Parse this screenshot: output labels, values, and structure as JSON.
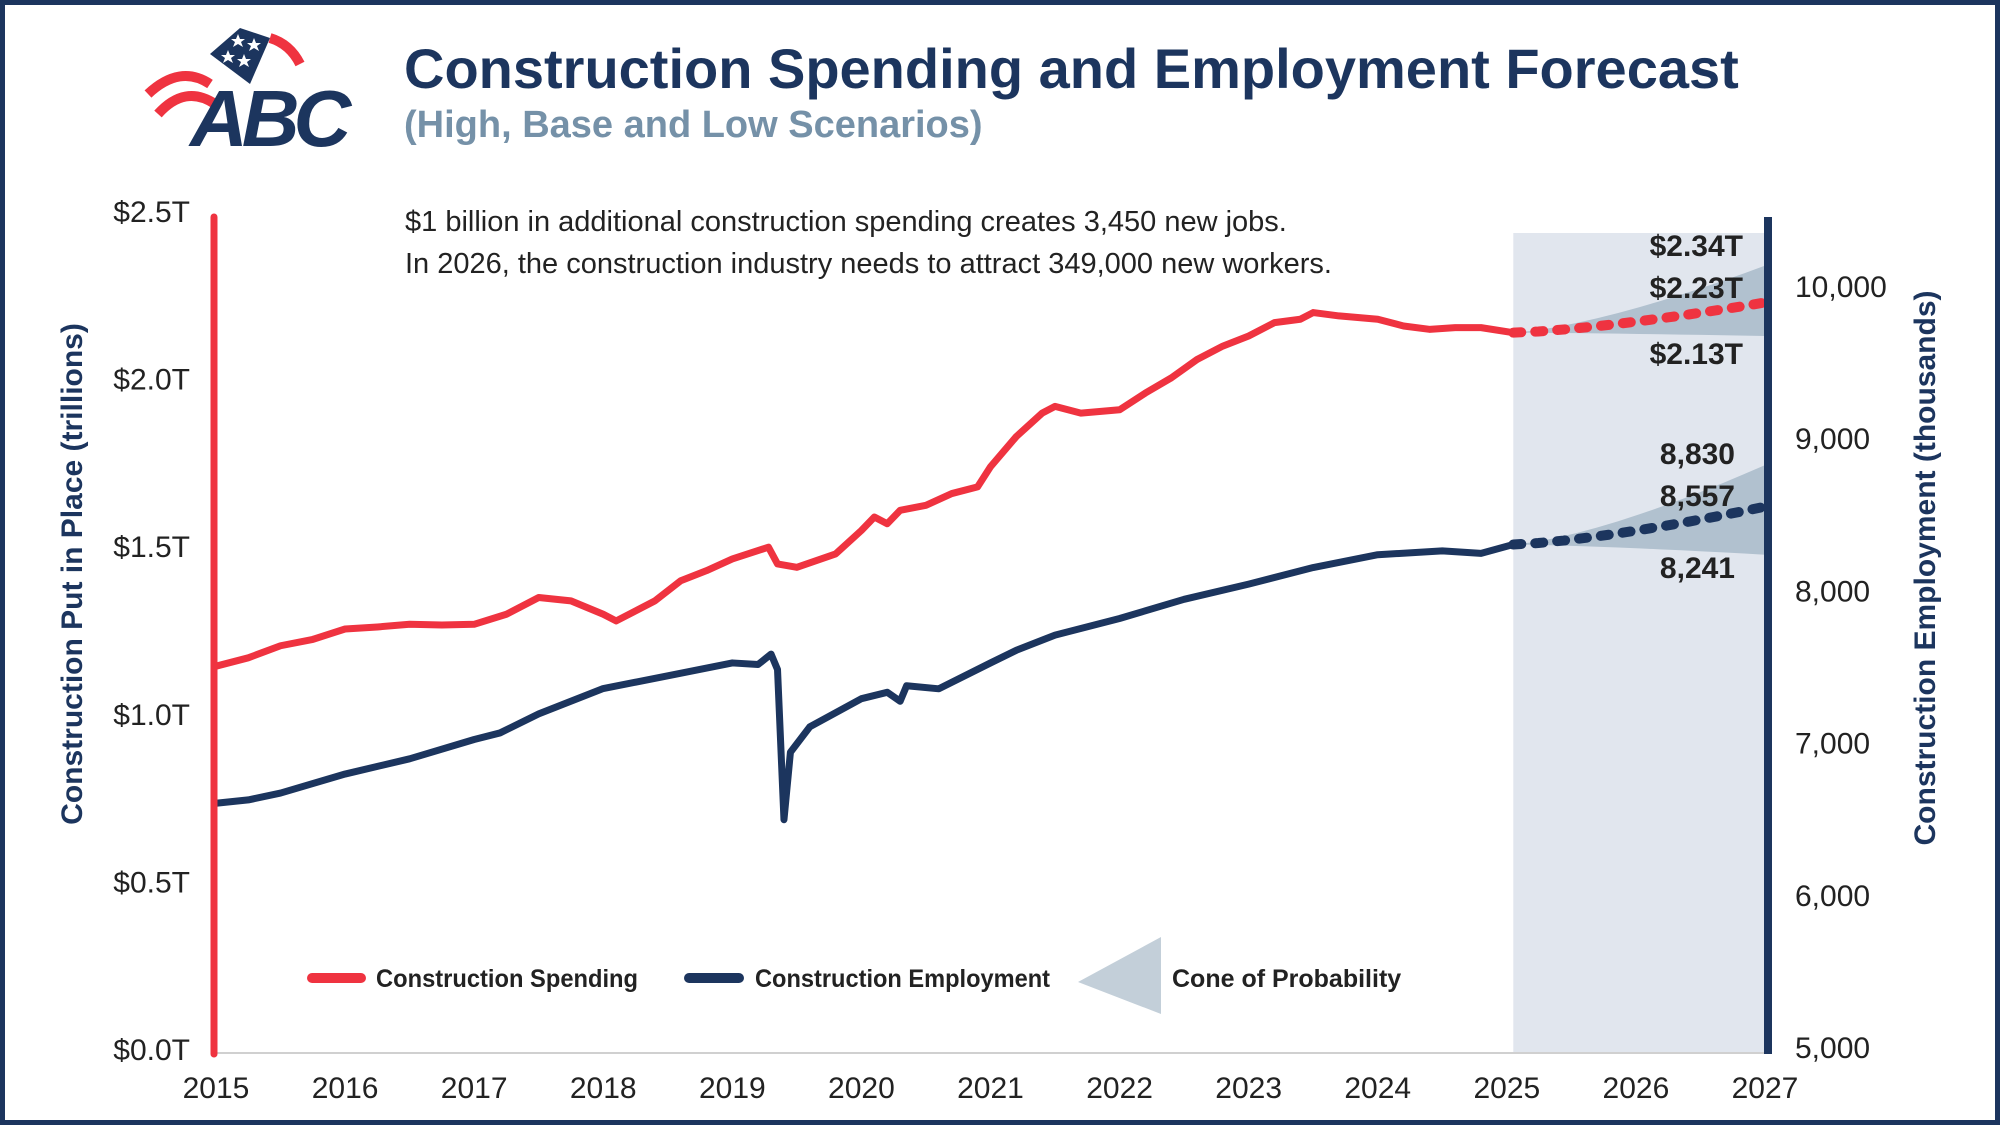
{
  "logo": {
    "text": "ABC"
  },
  "header": {
    "title": "Construction Spending and Employment Forecast",
    "subtitle": "(High, Base and Low Scenarios)"
  },
  "notes": [
    "$1 billion in additional construction spending creates 3,450 new jobs.",
    "In 2026, the construction industry needs to attract 349,000 new workers."
  ],
  "colors": {
    "spending": "#ef3340",
    "employment": "#1c355e",
    "cone": "#b1c1cf",
    "forecast_bg": "#e1e6ee",
    "subtitle": "#7591a8"
  },
  "chart_data": {
    "type": "line",
    "title": "Construction Spending and Employment Forecast",
    "subtitle": "(High, Base and Low Scenarios)",
    "x_ticks": [
      "2015",
      "2016",
      "2017",
      "2018",
      "2019",
      "2020",
      "2021",
      "2022",
      "2023",
      "2024",
      "2025",
      "2026",
      "2027"
    ],
    "xlim": [
      2015,
      2027
    ],
    "left_axis": {
      "label": "Construction Put in Place (trillions)",
      "ylim": [
        0,
        2.5
      ],
      "ticks": [
        "$0.0T",
        "$0.5T",
        "$1.0T",
        "$1.5T",
        "$2.0T",
        "$2.5T"
      ],
      "tick_values": [
        0,
        0.5,
        1,
        1.5,
        2,
        2.5
      ]
    },
    "right_axis": {
      "label": "Construction Employment (thousands)",
      "ylim": [
        5000,
        10000
      ],
      "ticks": [
        "5,000",
        "6,000",
        "7,000",
        "8,000",
        "9,000",
        "10,000"
      ],
      "tick_values": [
        5000,
        6000,
        7000,
        8000,
        9000,
        10000
      ]
    },
    "grid": false,
    "legend_position": "bottom",
    "legend": [
      "Construction Spending",
      "Construction Employment",
      "Cone of Probability"
    ],
    "forecast_start": 2025.05,
    "series": [
      {
        "name": "Construction Spending",
        "axis": "left",
        "x": [
          2015.0,
          2015.25,
          2015.5,
          2015.75,
          2016.0,
          2016.25,
          2016.5,
          2016.75,
          2017.0,
          2017.25,
          2017.5,
          2017.75,
          2018.0,
          2018.1,
          2018.4,
          2018.6,
          2018.8,
          2019.0,
          2019.28,
          2019.35,
          2019.5,
          2019.8,
          2020.0,
          2020.1,
          2020.2,
          2020.3,
          2020.5,
          2020.7,
          2020.9,
          2021.0,
          2021.2,
          2021.4,
          2021.5,
          2021.7,
          2022.0,
          2022.2,
          2022.4,
          2022.6,
          2022.8,
          2023.0,
          2023.2,
          2023.4,
          2023.5,
          2023.7,
          2024.0,
          2024.2,
          2024.4,
          2024.6,
          2024.8,
          2025.05
        ],
        "y": [
          1.145,
          1.17,
          1.206,
          1.225,
          1.256,
          1.262,
          1.27,
          1.268,
          1.27,
          1.3,
          1.35,
          1.34,
          1.3,
          1.28,
          1.34,
          1.4,
          1.43,
          1.465,
          1.5,
          1.45,
          1.44,
          1.48,
          1.55,
          1.59,
          1.57,
          1.61,
          1.625,
          1.66,
          1.68,
          1.74,
          1.83,
          1.9,
          1.92,
          1.9,
          1.91,
          1.96,
          2.005,
          2.06,
          2.1,
          2.13,
          2.17,
          2.18,
          2.2,
          2.19,
          2.18,
          2.16,
          2.15,
          2.155,
          2.155,
          2.14
        ]
      },
      {
        "name": "Construction Employment",
        "axis": "right",
        "x": [
          2015.0,
          2015.25,
          2015.5,
          2016.0,
          2016.5,
          2017.0,
          2017.2,
          2017.5,
          2018.0,
          2018.5,
          2019.0,
          2019.2,
          2019.3,
          2019.35,
          2019.4,
          2019.45,
          2019.6,
          2020.0,
          2020.2,
          2020.3,
          2020.35,
          2020.6,
          2021.0,
          2021.2,
          2021.5,
          2022.0,
          2022.5,
          2023.0,
          2023.5,
          2024.0,
          2024.5,
          2024.8,
          2025.05
        ],
        "y": [
          6608,
          6630,
          6675,
          6800,
          6900,
          7027,
          7070,
          7195,
          7362,
          7445,
          7530,
          7520,
          7588,
          7487,
          6500,
          6943,
          7110,
          7295,
          7337,
          7278,
          7380,
          7360,
          7530,
          7613,
          7713,
          7822,
          7948,
          8048,
          8157,
          8241,
          8266,
          8250,
          8308
        ]
      }
    ],
    "forecasts": [
      {
        "series": "Construction Spending",
        "axis": "left",
        "x": [
          2025.05,
          2027
        ],
        "base": [
          2.14,
          2.23
        ],
        "high": [
          2.14,
          2.34
        ],
        "low": [
          2.14,
          2.13
        ],
        "labels": {
          "high": "$2.34T",
          "base": "$2.23T",
          "low": "$2.13T"
        }
      },
      {
        "series": "Construction Employment",
        "axis": "right",
        "x": [
          2025.05,
          2027
        ],
        "base": [
          8308,
          8557
        ],
        "high": [
          8308,
          8830
        ],
        "low": [
          8308,
          8241
        ],
        "labels": {
          "high": "8,830",
          "base": "8,557",
          "low": "8,241"
        }
      }
    ]
  }
}
